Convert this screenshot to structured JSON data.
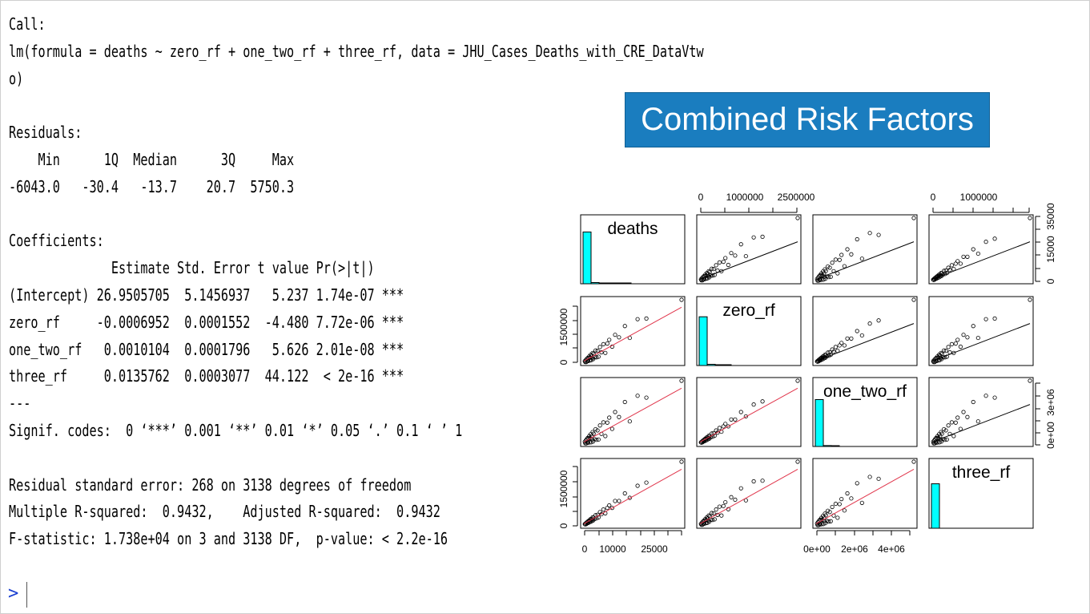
{
  "console": {
    "lines": [
      "Call:",
      "lm(formula = deaths ~ zero_rf + one_two_rf + three_rf, data = JHU_Cases_Deaths_with_CRE_DataVtw",
      "o)",
      "",
      "Residuals:",
      "    Min      1Q  Median      3Q     Max",
      "-6043.0   -30.4   -13.7    20.7  5750.3",
      "",
      "Coefficients:",
      "              Estimate Std. Error t value Pr(>|t|)    ",
      "(Intercept) 26.9505705  5.1456937   5.237 1.74e-07 ***",
      "zero_rf     -0.0006952  0.0001552  -4.480 7.72e-06 ***",
      "one_two_rf   0.0010104  0.0001796   5.626 2.01e-08 ***",
      "three_rf     0.0135762  0.0003077  44.122  < 2e-16 ***",
      "---",
      "Signif. codes:  0 ‘***’ 0.001 ‘**’ 0.01 ‘*’ 0.05 ‘.’ 0.1 ‘ ’ 1",
      "",
      "Residual standard error: 268 on 3138 degrees of freedom",
      "Multiple R-squared:  0.9432,\tAdjusted R-squared:  0.9432 ",
      "F-statistic: 1.738e+04 on 3 and 3138 DF,  p-value: < 2.2e-16"
    ],
    "prompt": ">"
  },
  "slide_title": "Combined Risk Factors",
  "colors": {
    "title_bg": "#1a7dbf",
    "title_text": "#ffffff",
    "hist_fill": "#00ffff",
    "smooth_line": "#e0344a",
    "prompt": "#1a3fd1"
  },
  "pairs_plot": {
    "variables": [
      "deaths",
      "zero_rf",
      "one_two_rf",
      "three_rf"
    ],
    "top_axis_col2": [
      "0",
      "1000000",
      "2500000"
    ],
    "top_axis_col4": [
      "0",
      "1000000"
    ],
    "right_axis_row1": [
      "0",
      "15000",
      "35000"
    ],
    "right_axis_row3": [
      "0e+00",
      "3e+06"
    ],
    "left_axis_row2": [
      "0",
      "1500000"
    ],
    "left_axis_row4": [
      "0",
      "1500000"
    ],
    "bottom_axis_col1": [
      "0",
      "10000",
      "25000"
    ],
    "bottom_axis_col3": [
      "0e+00",
      "2e+06",
      "4e+06"
    ]
  },
  "chart_data": {
    "type": "scatter",
    "variables": [
      "deaths",
      "zero_rf",
      "one_two_rf",
      "three_rf"
    ],
    "axis_ticks": {
      "deaths": [
        0,
        10000,
        25000
      ],
      "deaths_right": [
        0,
        15000,
        35000
      ],
      "zero_rf": [
        0,
        1000000,
        2500000
      ],
      "zero_rf_left": [
        0,
        1500000
      ],
      "one_two_rf": [
        0,
        2000000,
        4000000
      ],
      "one_two_rf_right": [
        0,
        3000000
      ],
      "three_rf": [
        0,
        1000000
      ],
      "three_rf_left": [
        0,
        1500000
      ]
    },
    "ranges": {
      "deaths": [
        0,
        30000
      ],
      "zero_rf": [
        0,
        3000000
      ],
      "one_two_rf": [
        0,
        4800000
      ],
      "three_rf": [
        0,
        2100000
      ]
    },
    "max_point": {
      "deaths": 30000,
      "zero_rf": 3000000,
      "one_two_rf": 4800000,
      "three_rf": 2100000
    },
    "cluster_points": [
      {
        "t": 0.01,
        "o": 0.005
      },
      {
        "t": 0.015,
        "o": -0.005
      },
      {
        "t": 0.02,
        "o": 0.008
      },
      {
        "t": 0.025,
        "o": -0.01
      },
      {
        "t": 0.03,
        "o": 0.012
      },
      {
        "t": 0.035,
        "o": -0.006
      },
      {
        "t": 0.04,
        "o": 0.015
      },
      {
        "t": 0.045,
        "o": -0.012
      },
      {
        "t": 0.05,
        "o": 0.01
      },
      {
        "t": 0.055,
        "o": 0.02
      },
      {
        "t": 0.06,
        "o": -0.015
      },
      {
        "t": 0.065,
        "o": 0.005
      },
      {
        "t": 0.07,
        "o": 0.025
      },
      {
        "t": 0.075,
        "o": -0.02
      },
      {
        "t": 0.08,
        "o": 0.012
      },
      {
        "t": 0.085,
        "o": -0.008
      },
      {
        "t": 0.09,
        "o": 0.03
      },
      {
        "t": 0.095,
        "o": -0.022
      },
      {
        "t": 0.1,
        "o": 0.018
      },
      {
        "t": 0.11,
        "o": -0.015
      },
      {
        "t": 0.12,
        "o": 0.035
      },
      {
        "t": 0.13,
        "o": -0.025
      },
      {
        "t": 0.14,
        "o": 0.022
      },
      {
        "t": 0.15,
        "o": -0.03
      },
      {
        "t": 0.165,
        "o": 0.04
      },
      {
        "t": 0.18,
        "o": -0.01
      },
      {
        "t": 0.2,
        "o": 0.045
      },
      {
        "t": 0.22,
        "o": -0.035
      },
      {
        "t": 0.24,
        "o": 0.03
      },
      {
        "t": 0.26,
        "o": 0.05
      },
      {
        "t": 0.29,
        "o": -0.02
      },
      {
        "t": 0.32,
        "o": 0.06
      },
      {
        "t": 0.36,
        "o": 0.02
      },
      {
        "t": 0.42,
        "o": 0.08
      },
      {
        "t": 0.47,
        "o": -0.04
      },
      {
        "t": 0.55,
        "o": 0.07
      },
      {
        "t": 0.64,
        "o": 0.03
      }
    ],
    "histograms": {
      "deaths": [
        0.85,
        0.02,
        0.005,
        0.003,
        0.002,
        0.001
      ],
      "zero_rf": [
        0.8,
        0.02,
        0.005,
        0.002
      ],
      "one_two_rf": [
        0.77,
        0.015,
        0.004
      ],
      "three_rf": [
        0.72,
        0.0,
        0.0
      ]
    }
  }
}
